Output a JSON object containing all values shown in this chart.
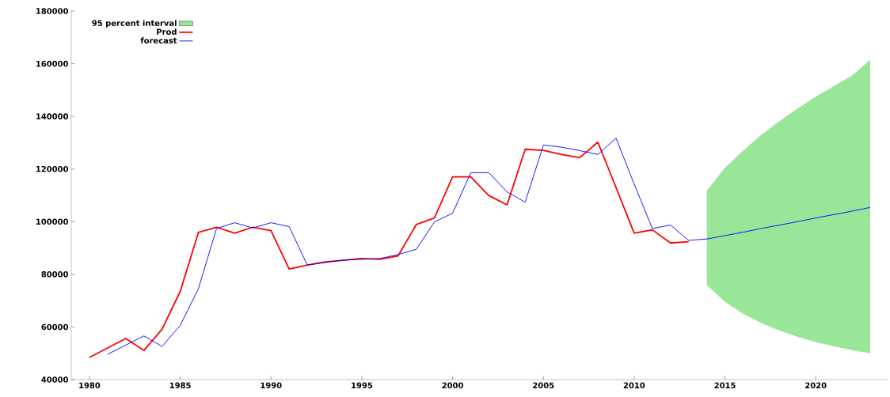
{
  "chart_data": {
    "type": "line",
    "xlim": [
      1979,
      2024
    ],
    "ylim": [
      40000,
      180000
    ],
    "xticks": [
      1980,
      1985,
      1990,
      1995,
      2000,
      2005,
      2010,
      2015,
      2020
    ],
    "yticks": [
      40000,
      60000,
      80000,
      100000,
      120000,
      140000,
      160000,
      180000
    ],
    "grid": false,
    "legend": "top left",
    "series": [
      {
        "name": "95 percent interval",
        "type": "area",
        "color": "#99e699"
      },
      {
        "name": "Prod",
        "color": "#ff0000",
        "x": [
          1980,
          1981,
          1982,
          1983,
          1984,
          1985,
          1986,
          1987,
          1988,
          1989,
          1990,
          1991,
          1992,
          1993,
          1994,
          1995,
          1996,
          1997,
          1998,
          1999,
          2000,
          2001,
          2002,
          2003,
          2004,
          2005,
          2006,
          2007,
          2008,
          2009,
          2010,
          2011,
          2012,
          2013
        ],
        "values": [
          48400,
          52000,
          55600,
          51100,
          59100,
          73500,
          95900,
          97900,
          95600,
          97900,
          96600,
          82000,
          83500,
          84700,
          85300,
          86000,
          85700,
          87000,
          98900,
          101400,
          117000,
          117000,
          109900,
          106400,
          127500,
          127100,
          125500,
          124300,
          130200,
          113000,
          95600,
          96900,
          91900,
          92400
        ]
      },
      {
        "name": "forecast",
        "color": "#0000ff",
        "x": [
          1981,
          1982,
          1983,
          1984,
          1985,
          1986,
          1987,
          1988,
          1989,
          1990,
          1991,
          1992,
          1993,
          1994,
          1995,
          1996,
          1997,
          1998,
          1999,
          2000,
          2001,
          2002,
          2003,
          2004,
          2005,
          2006,
          2007,
          2008,
          2009,
          2010,
          2011,
          2012,
          2013,
          2014,
          2015,
          2016,
          2017,
          2018,
          2019,
          2020,
          2021,
          2022,
          2023
        ],
        "values": [
          49600,
          53100,
          56600,
          52600,
          60600,
          74500,
          97400,
          99600,
          97600,
          99600,
          98100,
          83500,
          84500,
          85400,
          85700,
          86000,
          87500,
          89500,
          99900,
          103200,
          118600,
          118600,
          111300,
          107400,
          129100,
          128300,
          127000,
          125500,
          131700,
          114300,
          97400,
          98700,
          92900,
          93400,
          94700,
          96000,
          97400,
          98700,
          100000,
          101400,
          102700,
          104000,
          105400
        ],
        "lower": [
          null,
          null,
          null,
          null,
          null,
          null,
          null,
          null,
          null,
          null,
          null,
          null,
          null,
          null,
          null,
          null,
          null,
          null,
          null,
          null,
          null,
          null,
          null,
          null,
          null,
          null,
          null,
          null,
          null,
          null,
          null,
          null,
          null,
          76000,
          69500,
          65000,
          61500,
          58600,
          56200,
          54300,
          52600,
          51200,
          50000
        ],
        "upper": [
          null,
          null,
          null,
          null,
          null,
          null,
          null,
          null,
          null,
          null,
          null,
          null,
          null,
          null,
          null,
          null,
          null,
          null,
          null,
          null,
          null,
          null,
          null,
          null,
          null,
          null,
          null,
          null,
          null,
          null,
          null,
          null,
          null,
          111800,
          120500,
          127000,
          133000,
          138200,
          143000,
          147500,
          151500,
          155500,
          161500
        ]
      }
    ]
  }
}
